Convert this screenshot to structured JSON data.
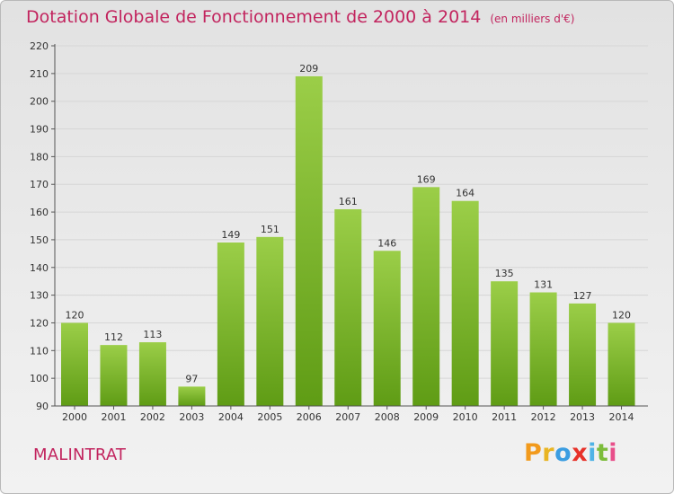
{
  "header": {
    "title": "Dotation Globale de Fonctionnement de 2000 à 2014",
    "unit": "(en milliers d'€)"
  },
  "footer": {
    "commune": "MALINTRAT",
    "logo_letters": [
      "P",
      "r",
      "o",
      "x",
      "i",
      "t",
      "i"
    ],
    "logo_colors": [
      "#f29a1c",
      "#e9b523",
      "#3b9de1",
      "#e7322a",
      "#4fb3e6",
      "#7cbc3b",
      "#e84f8a"
    ]
  },
  "colors": {
    "title": "#c2245e",
    "bar_top": "#9bce48",
    "bar_bottom": "#5f9c15",
    "axis": "#555555",
    "grid": "#d6d6d6"
  },
  "chart_data": {
    "type": "bar",
    "title": "Dotation Globale de Fonctionnement de 2000 à 2014",
    "subtitle": "(en milliers d'€)",
    "xlabel": "",
    "ylabel": "",
    "categories": [
      "2000",
      "2001",
      "2002",
      "2003",
      "2004",
      "2005",
      "2006",
      "2007",
      "2008",
      "2009",
      "2010",
      "2011",
      "2012",
      "2013",
      "2014"
    ],
    "values": [
      120,
      112,
      113,
      97,
      149,
      151,
      209,
      161,
      146,
      169,
      164,
      135,
      131,
      127,
      120
    ],
    "ylim": [
      90,
      220
    ],
    "yticks": [
      90,
      100,
      110,
      120,
      130,
      140,
      150,
      160,
      170,
      180,
      190,
      200,
      210,
      220
    ],
    "grid": true,
    "legend": "none"
  }
}
